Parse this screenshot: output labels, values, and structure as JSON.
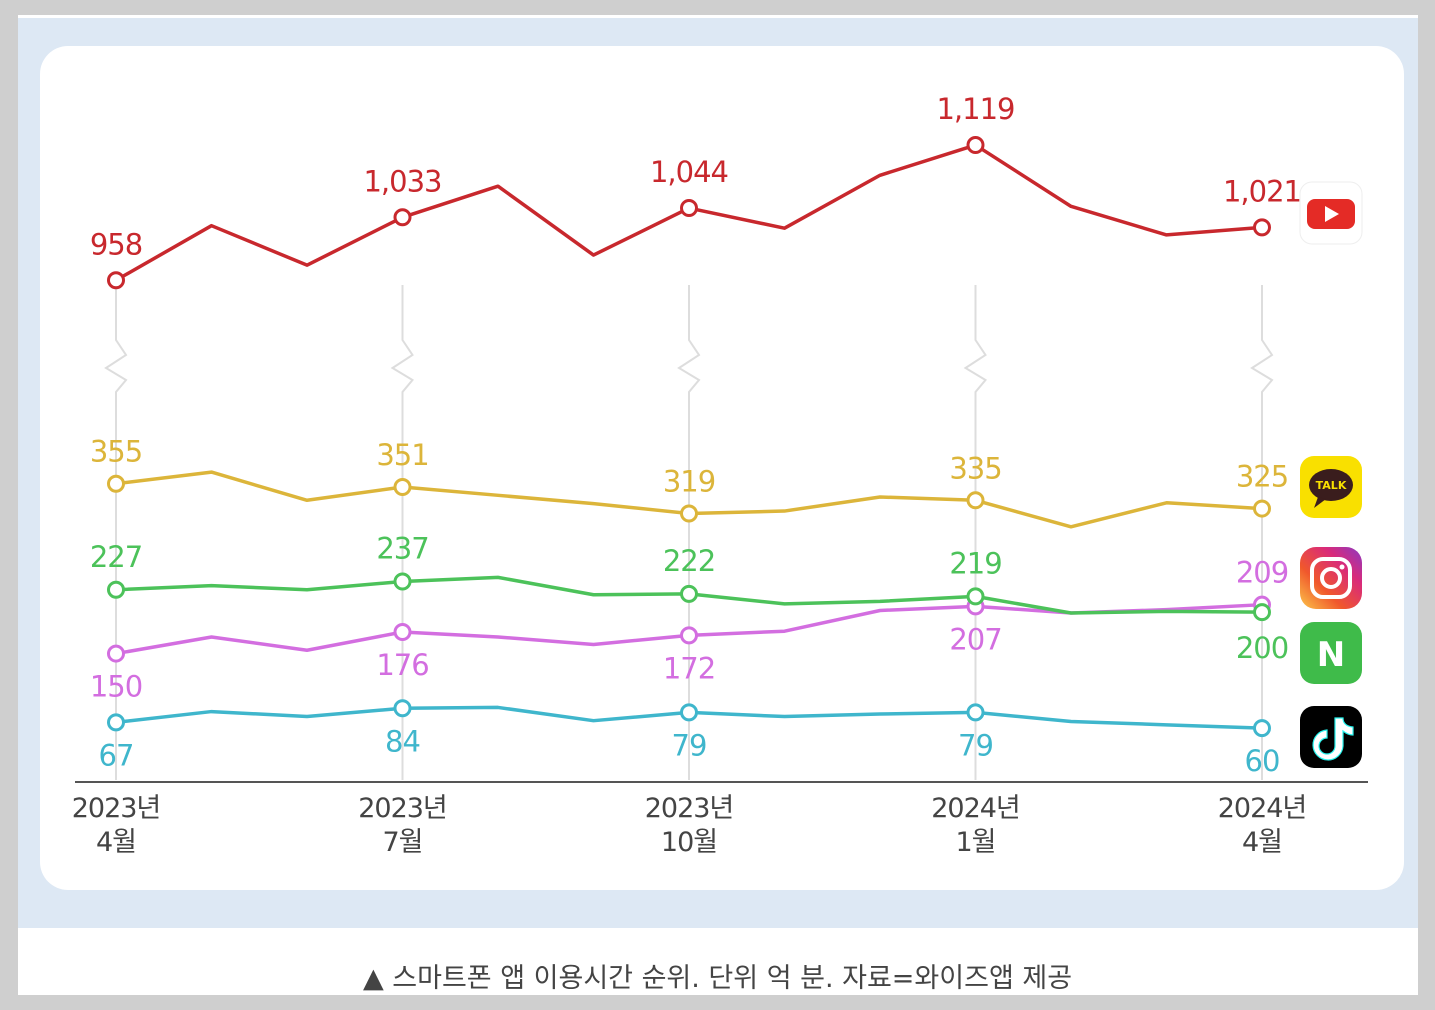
{
  "chart_data": {
    "type": "line",
    "caption": "▲ 스마트폰 앱 이용시간 순위. 단위 억 분. 자료=와이즈앱 제공",
    "categories": [
      "2023년\n4월",
      null,
      null,
      "2023년\n7월",
      null,
      null,
      "2023년\n10월",
      null,
      null,
      "2024년\n1월",
      null,
      null,
      "2024년\n4월"
    ],
    "ylim": [
      [
        30,
        380
      ],
      [
        900,
        1150
      ]
    ],
    "series": [
      {
        "color": "#c8282d",
        "values": [
          958,
          1023,
          976,
          1033,
          1070,
          988,
          1044,
          1020,
          1083,
          1119,
          1046,
          1012,
          1021
        ],
        "value_labels": [
          "958",
          null,
          null,
          "1,033",
          null,
          null,
          "1,044",
          null,
          null,
          "1,119",
          null,
          null,
          "1,021"
        ]
      },
      {
        "color": "#dcb53a",
        "badge": "TALK",
        "values": [
          355,
          369,
          335,
          351,
          341,
          331,
          319,
          322,
          339,
          335,
          303,
          332,
          325
        ]
      },
      {
        "color": "#d36ee0",
        "values": [
          150,
          170,
          154,
          176,
          170,
          161,
          172,
          177,
          202,
          207,
          199,
          203,
          209
        ]
      },
      {
        "color": "#4cc25a",
        "badge": "N",
        "values": [
          227,
          232,
          227,
          237,
          242,
          221,
          222,
          210,
          213,
          219,
          199,
          201,
          200
        ]
      },
      {
        "color": "#3fb6cc",
        "values": [
          67,
          80,
          74,
          84,
          85,
          69,
          79,
          74,
          77,
          79,
          68,
          64,
          60
        ]
      }
    ]
  }
}
